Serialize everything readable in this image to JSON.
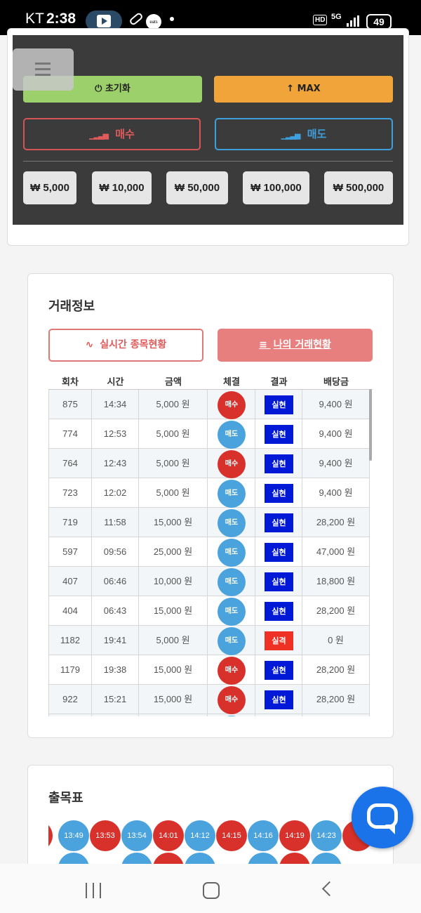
{
  "status_bar": {
    "carrier": "KT",
    "time": "2:38",
    "network": "5G",
    "hd": "HD",
    "battery": "49",
    "eats_label": "eats"
  },
  "controls": {
    "reset_label": "⏻ 초기화",
    "max_label": "↑ MAX",
    "buy_label": "매수",
    "sell_label": "매도",
    "amounts": [
      "₩ 5,000",
      "₩ 10,000",
      "₩ 50,000",
      "₩ 100,000",
      "₩ 500,000"
    ]
  },
  "trade_info": {
    "title": "거래정보",
    "realtime_tab": "실시간 종목현황",
    "my_trade_tab": "나의 거래현황",
    "columns": [
      "회차",
      "시간",
      "금액",
      "체결",
      "결과",
      "배당금"
    ],
    "rows": [
      {
        "round": "875",
        "time": "14:34",
        "amount": "5,000 원",
        "side": "매수",
        "result": "실현",
        "payout": "9,400 원"
      },
      {
        "round": "774",
        "time": "12:53",
        "amount": "5,000 원",
        "side": "매도",
        "result": "실현",
        "payout": "9,400 원"
      },
      {
        "round": "764",
        "time": "12:43",
        "amount": "5,000 원",
        "side": "매수",
        "result": "실현",
        "payout": "9,400 원"
      },
      {
        "round": "723",
        "time": "12:02",
        "amount": "5,000 원",
        "side": "매도",
        "result": "실현",
        "payout": "9,400 원"
      },
      {
        "round": "719",
        "time": "11:58",
        "amount": "15,000 원",
        "side": "매도",
        "result": "실현",
        "payout": "28,200 원"
      },
      {
        "round": "597",
        "time": "09:56",
        "amount": "25,000 원",
        "side": "매도",
        "result": "실현",
        "payout": "47,000 원"
      },
      {
        "round": "407",
        "time": "06:46",
        "amount": "10,000 원",
        "side": "매도",
        "result": "실현",
        "payout": "18,800 원"
      },
      {
        "round": "404",
        "time": "06:43",
        "amount": "15,000 원",
        "side": "매도",
        "result": "실현",
        "payout": "28,200 원"
      },
      {
        "round": "1182",
        "time": "19:41",
        "amount": "5,000 원",
        "side": "매도",
        "result": "실격",
        "payout": "0 원"
      },
      {
        "round": "1179",
        "time": "19:38",
        "amount": "15,000 원",
        "side": "매수",
        "result": "실현",
        "payout": "28,200 원"
      },
      {
        "round": "922",
        "time": "15:21",
        "amount": "15,000 원",
        "side": "매수",
        "result": "실현",
        "payout": "28,200 원"
      }
    ]
  },
  "history": {
    "title": "출목표",
    "balls": [
      {
        "label": "13:49",
        "side": "sell"
      },
      {
        "label": "13:53",
        "side": "buy"
      },
      {
        "label": "13:54",
        "side": "sell"
      },
      {
        "label": "14:01",
        "side": "buy"
      },
      {
        "label": "14:12",
        "side": "sell"
      },
      {
        "label": "14:15",
        "side": "buy"
      },
      {
        "label": "14:16",
        "side": "sell"
      },
      {
        "label": "14:19",
        "side": "buy"
      },
      {
        "label": "14:23",
        "side": "sell"
      }
    ]
  },
  "colors": {
    "buy": "#d8312b",
    "sell": "#4aa3dc",
    "realized": "#0019d6",
    "disqualified": "#ee3124"
  }
}
